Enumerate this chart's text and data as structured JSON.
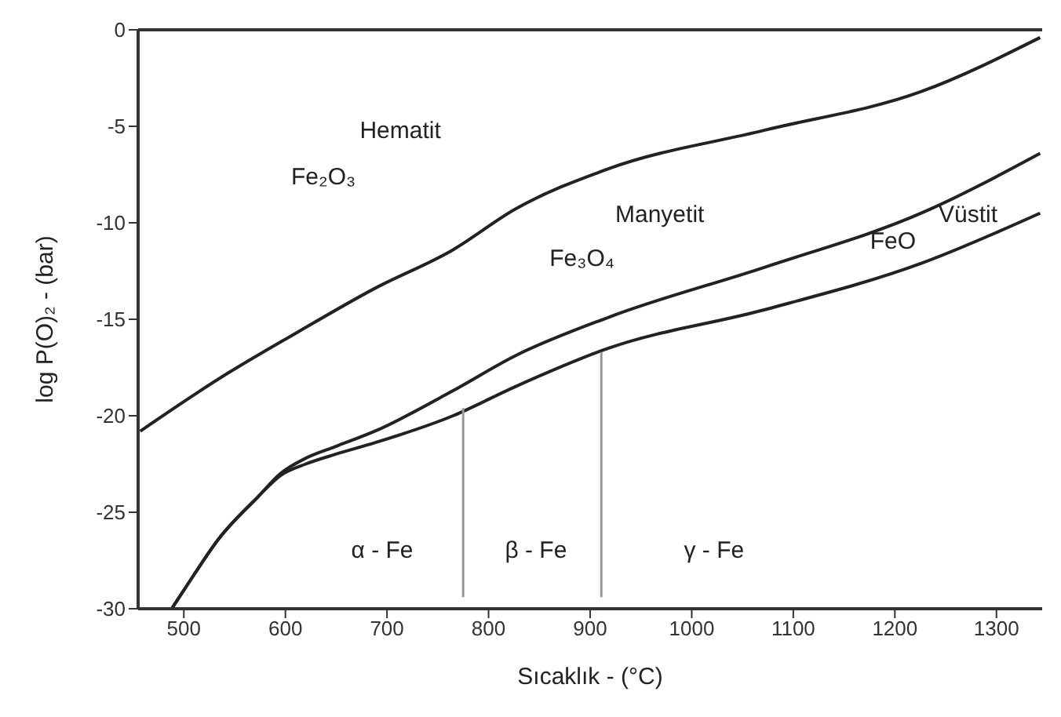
{
  "chart_data": {
    "type": "line",
    "xlabel": "Sıcaklık - (°C)",
    "ylabel": "log P(O)₂ - (bar)",
    "xlim": [
      455,
      1345
    ],
    "ylim": [
      -30,
      0
    ],
    "xticks": [
      500,
      600,
      700,
      800,
      900,
      1000,
      1100,
      1200,
      1300
    ],
    "yticks": [
      0,
      -5,
      -10,
      -15,
      -20,
      -25,
      -30
    ],
    "grid": false,
    "marker": "none",
    "line_style": "solid",
    "series": [
      {
        "color": "#222222",
        "x": [
          457,
          534,
          611,
          688,
          765,
          826,
          918,
          1072,
          1226,
          1343
        ],
        "values": [
          -20.8,
          -18.1,
          -15.7,
          -13.4,
          -11.4,
          -9.3,
          -7.2,
          -5.2,
          -3.2,
          -0.4
        ]
      },
      {
        "color": "#222222",
        "x": [
          488,
          503,
          534,
          573,
          595,
          620,
          649,
          688,
          765,
          826,
          918,
          1072,
          1226,
          1343
        ],
        "values": [
          -30,
          -28.8,
          -26.4,
          -24.2,
          -23.0,
          -22.2,
          -21.6,
          -20.8,
          -18.7,
          -16.9,
          -14.9,
          -12.3,
          -9.5,
          -6.4
        ]
      },
      {
        "color": "#222222",
        "x": [
          488,
          503,
          534,
          573,
          595,
          620,
          649,
          688,
          765,
          826,
          918,
          1072,
          1226,
          1343
        ],
        "values": [
          -30,
          -28.8,
          -26.4,
          -24.2,
          -23.1,
          -22.5,
          -22.0,
          -21.4,
          -20.0,
          -18.5,
          -16.5,
          -14.5,
          -12.1,
          -9.5
        ]
      },
      {
        "color": "#999999",
        "x": [
          775,
          775
        ],
        "values": [
          -19.6,
          -29.4
        ]
      },
      {
        "color": "#999999",
        "x": [
          911,
          911
        ],
        "values": [
          -16.7,
          -29.4
        ]
      }
    ],
    "annotations": [
      "Hematit",
      "Fe₂O₃",
      "Manyetit",
      "Fe₃O₄",
      "FeO",
      "Vüstit",
      "α - Fe",
      "β - Fe",
      "γ - Fe"
    ]
  }
}
